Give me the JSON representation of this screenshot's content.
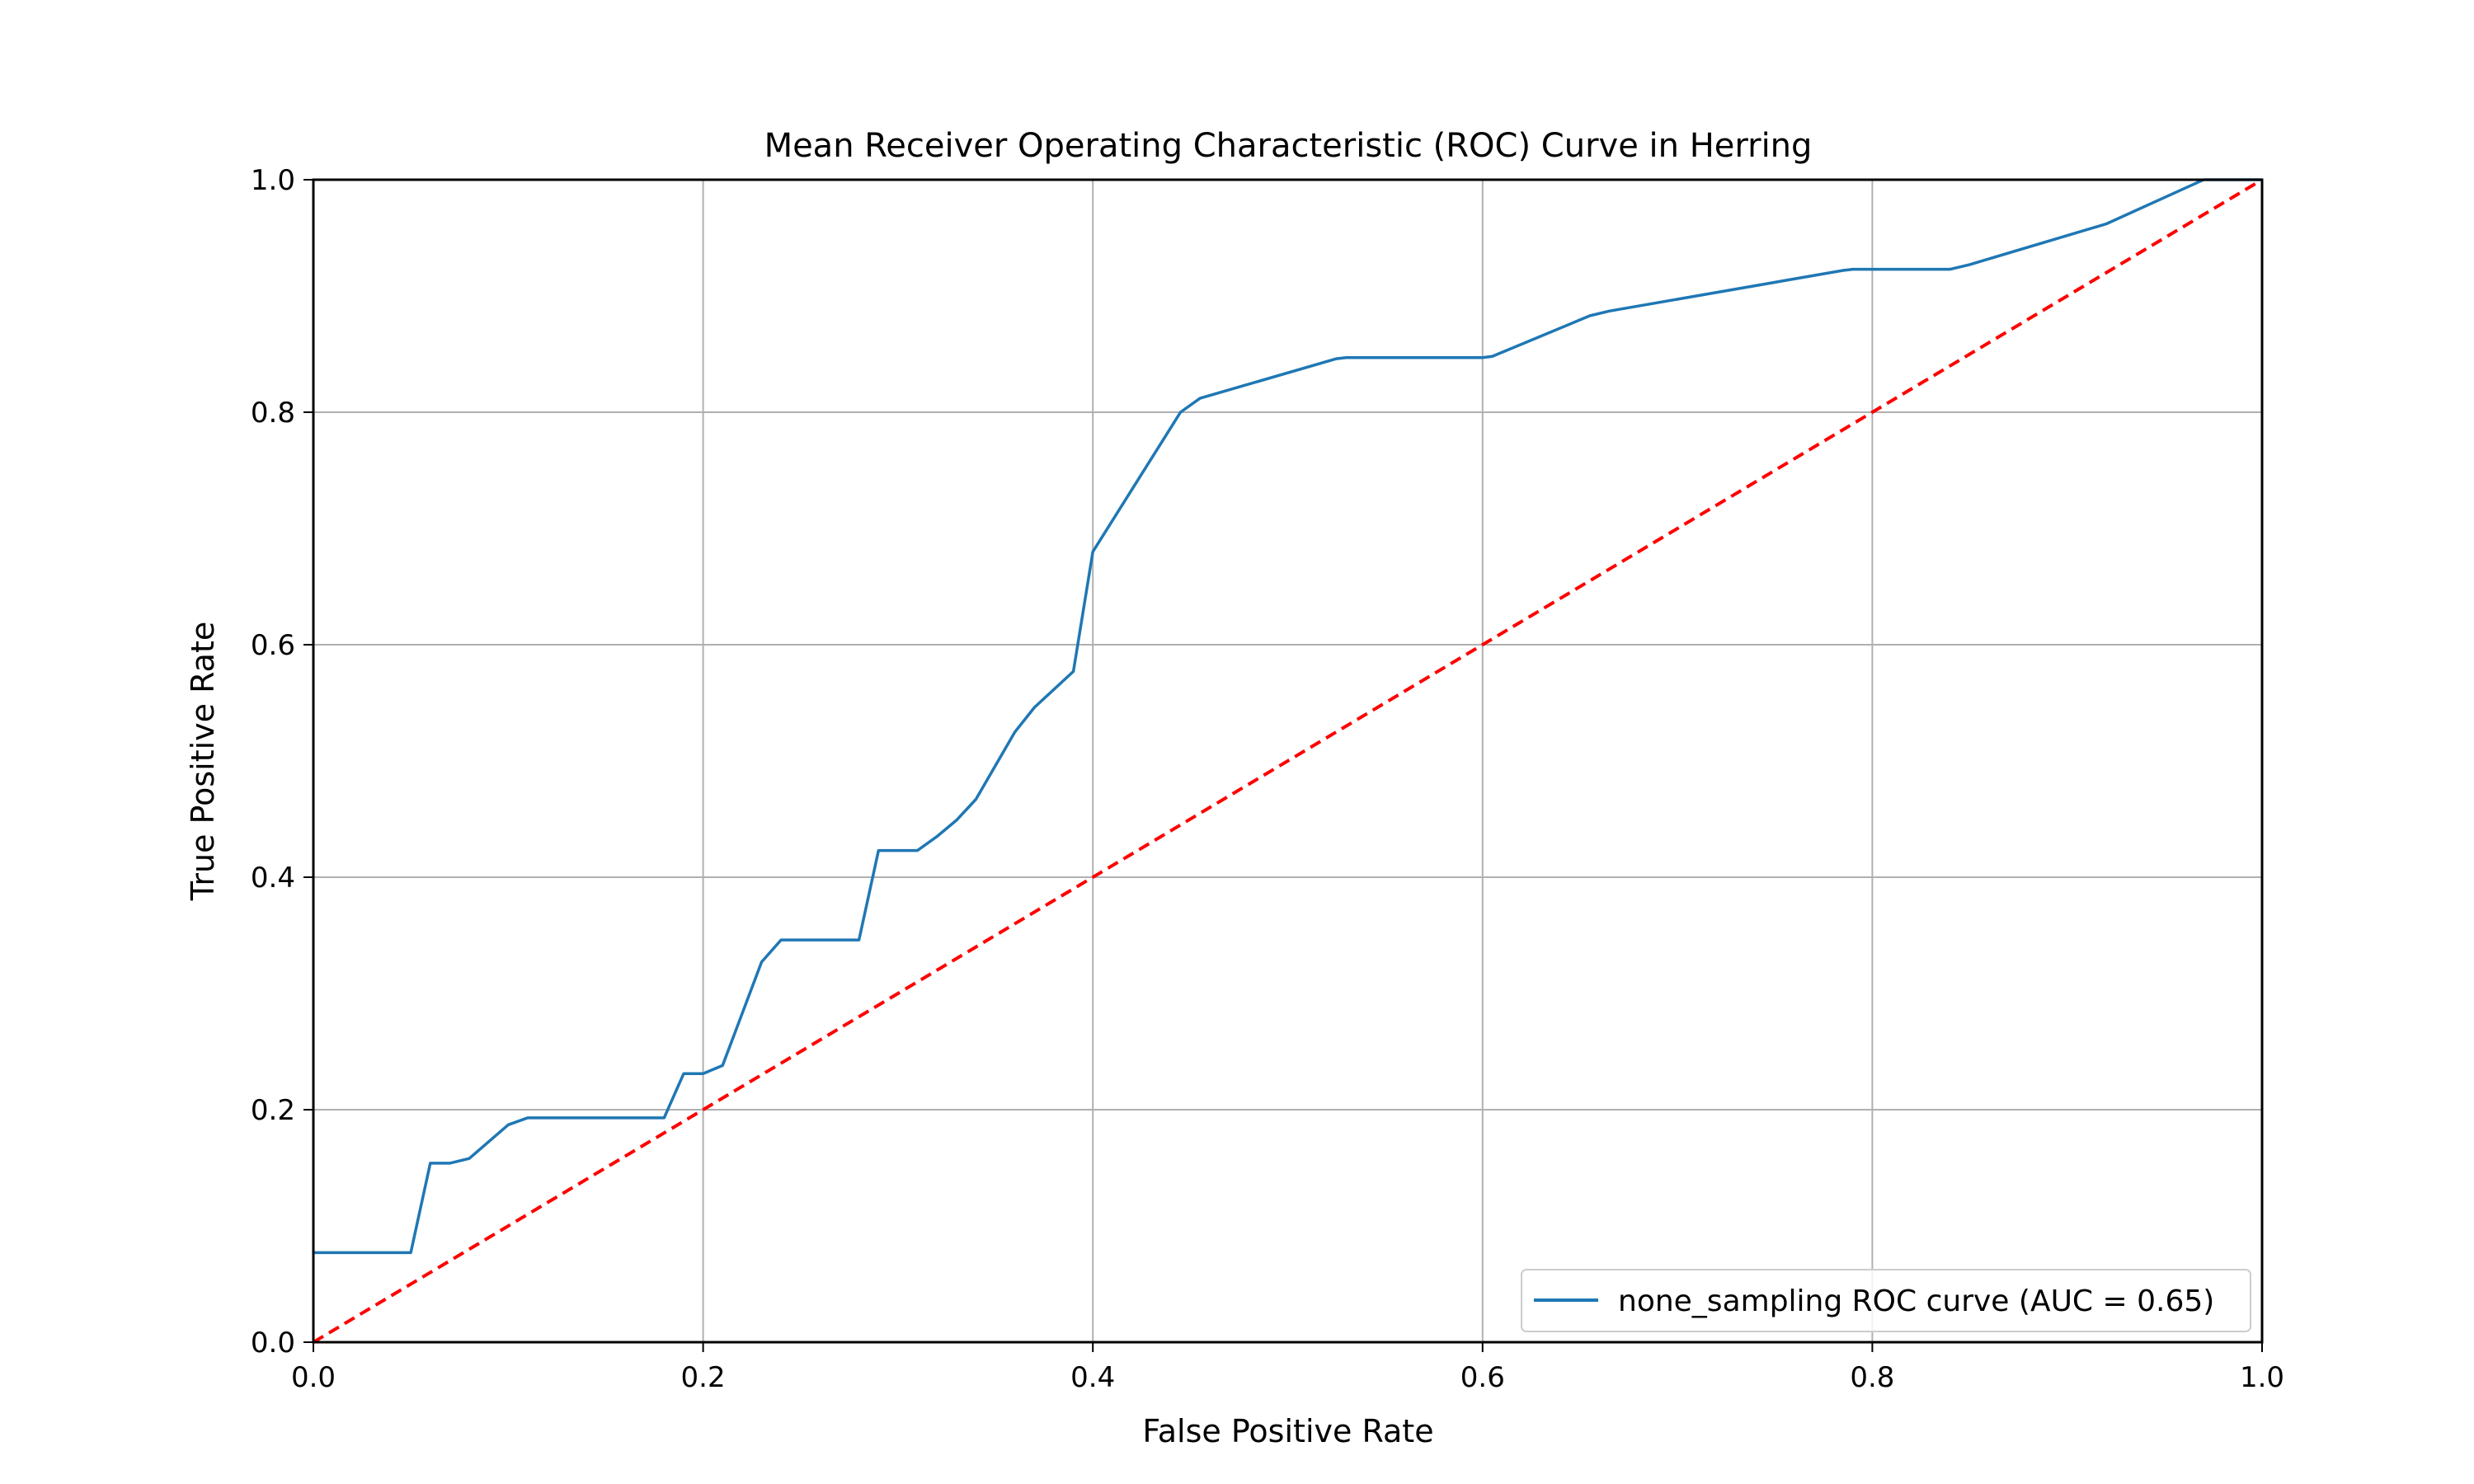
{
  "chart_data": {
    "type": "line",
    "title": "Mean Receiver Operating Characteristic (ROC) Curve in Herring",
    "xlabel": "False Positive Rate",
    "ylabel": "True Positive Rate",
    "xlim": [
      0.0,
      1.0
    ],
    "ylim": [
      0.0,
      1.0
    ],
    "xticks": [
      "0.0",
      "0.2",
      "0.4",
      "0.6",
      "0.8",
      "1.0"
    ],
    "yticks": [
      "0.0",
      "0.2",
      "0.4",
      "0.6",
      "0.8",
      "1.0"
    ],
    "grid": true,
    "legend_position": "lower-right",
    "series": [
      {
        "name": "none_sampling ROC curve (AUC = 0.65)",
        "color": "#1f77b4",
        "style": "solid",
        "x": [
          0.0,
          0.05,
          0.06,
          0.07,
          0.08,
          0.1,
          0.11,
          0.18,
          0.19,
          0.2,
          0.21,
          0.23,
          0.24,
          0.28,
          0.29,
          0.31,
          0.32,
          0.33,
          0.34,
          0.36,
          0.37,
          0.39,
          0.4,
          0.445,
          0.455,
          0.525,
          0.53,
          0.6,
          0.605,
          0.655,
          0.665,
          0.785,
          0.79,
          0.84,
          0.85,
          0.92,
          0.97,
          1.0
        ],
        "y": [
          0.077,
          0.077,
          0.154,
          0.154,
          0.158,
          0.187,
          0.193,
          0.193,
          0.231,
          0.231,
          0.238,
          0.327,
          0.346,
          0.346,
          0.423,
          0.423,
          0.435,
          0.449,
          0.467,
          0.525,
          0.546,
          0.577,
          0.68,
          0.8,
          0.812,
          0.846,
          0.847,
          0.847,
          0.848,
          0.883,
          0.887,
          0.922,
          0.923,
          0.923,
          0.927,
          0.962,
          1.0,
          1.0
        ]
      },
      {
        "name": "",
        "color": "#ff0000",
        "style": "dashed",
        "x": [
          0.0,
          1.0
        ],
        "y": [
          0.0,
          1.0
        ]
      }
    ]
  }
}
